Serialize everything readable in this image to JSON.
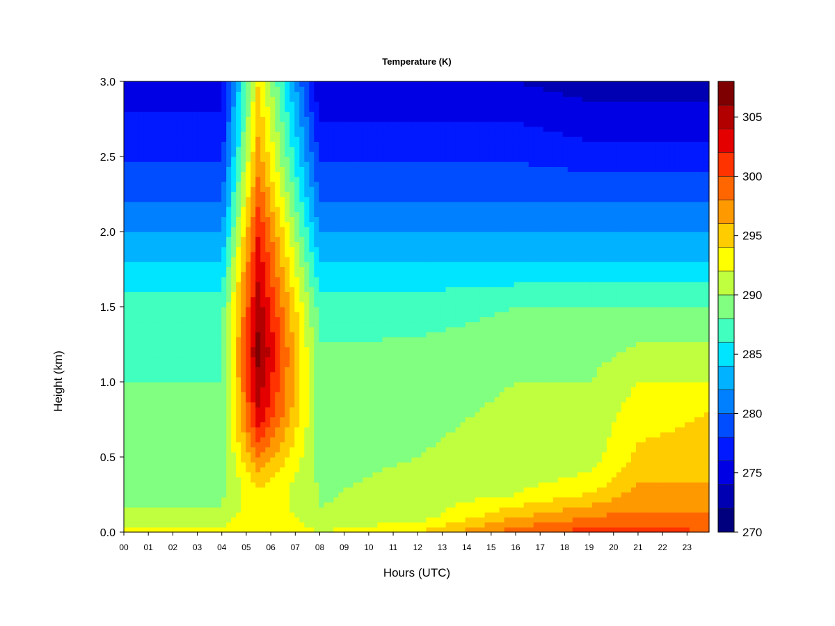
{
  "chart_data": {
    "type": "heatmap",
    "title": "Temperature (K)",
    "xlabel": "Hours (UTC)",
    "ylabel": "Height (km)",
    "x_ticks": [
      "00",
      "01",
      "02",
      "03",
      "04",
      "05",
      "06",
      "07",
      "08",
      "09",
      "10",
      "11",
      "12",
      "13",
      "14",
      "15",
      "16",
      "17",
      "18",
      "19",
      "20",
      "21",
      "22",
      "23"
    ],
    "x_range": [
      0,
      23.9
    ],
    "y_ticks": [
      "0.0",
      "0.5",
      "1.0",
      "1.5",
      "2.0",
      "2.5",
      "3.0"
    ],
    "y_range": [
      0,
      3.0
    ],
    "colorbar": {
      "levels": [
        270,
        272.5,
        275,
        277.5,
        280,
        282.5,
        285,
        287.5,
        290,
        292.5,
        295,
        297.5,
        300,
        302.5,
        305,
        307.5
      ],
      "tick_labels": [
        "270",
        "275",
        "280",
        "285",
        "290",
        "295",
        "300",
        "305"
      ],
      "colors": [
        "#00007F",
        "#0000B2",
        "#0000E5",
        "#0019FF",
        "#004CFF",
        "#0080FF",
        "#00B2FF",
        "#00E5FF",
        "#40FFBF",
        "#80FF80",
        "#BFFF40",
        "#FFFF00",
        "#FFCC00",
        "#FF9900",
        "#FF6600",
        "#FF3300",
        "#E50000",
        "#B20000",
        "#7F0000"
      ],
      "range": [
        270,
        308
      ]
    },
    "profiles": [
      {
        "hour": 0,
        "temps": [
          [
            0,
            293
          ],
          [
            0.15,
            290
          ],
          [
            0.5,
            289
          ],
          [
            1.0,
            288
          ],
          [
            1.5,
            287
          ],
          [
            1.8,
            284
          ],
          [
            2.2,
            280
          ],
          [
            2.6,
            277
          ],
          [
            3.0,
            275
          ]
        ]
      },
      {
        "hour": 4,
        "temps": [
          [
            0,
            292.5
          ],
          [
            0.15,
            290
          ],
          [
            0.5,
            289
          ],
          [
            1.0,
            288
          ],
          [
            1.5,
            287
          ],
          [
            1.8,
            284
          ],
          [
            2.2,
            280
          ],
          [
            2.6,
            277
          ],
          [
            3.0,
            275
          ]
        ]
      },
      {
        "hour": 5.5,
        "temps": [
          [
            0,
            294
          ],
          [
            0.3,
            294
          ],
          [
            0.5,
            298
          ],
          [
            0.8,
            304
          ],
          [
            1.2,
            307
          ],
          [
            1.7,
            304
          ],
          [
            2.0,
            302
          ],
          [
            2.5,
            297
          ],
          [
            3.0,
            294
          ]
        ]
      },
      {
        "hour": 8,
        "temps": [
          [
            0,
            292
          ],
          [
            0.15,
            290
          ],
          [
            0.5,
            289.5
          ],
          [
            1.0,
            289
          ],
          [
            1.5,
            287
          ],
          [
            1.8,
            284
          ],
          [
            2.2,
            280
          ],
          [
            2.6,
            277
          ],
          [
            3.0,
            274
          ]
        ]
      },
      {
        "hour": 12,
        "temps": [
          [
            0,
            294
          ],
          [
            0.1,
            291
          ],
          [
            0.5,
            290
          ],
          [
            1.0,
            289.5
          ],
          [
            1.5,
            287
          ],
          [
            1.8,
            284
          ],
          [
            2.2,
            280
          ],
          [
            2.6,
            277
          ],
          [
            3.0,
            274
          ]
        ]
      },
      {
        "hour": 16,
        "temps": [
          [
            0,
            299
          ],
          [
            0.1,
            296
          ],
          [
            0.25,
            292
          ],
          [
            0.5,
            290.5
          ],
          [
            1.0,
            290
          ],
          [
            1.5,
            288
          ],
          [
            1.8,
            284
          ],
          [
            2.2,
            280
          ],
          [
            2.6,
            277
          ],
          [
            3.0,
            274
          ]
        ]
      },
      {
        "hour": 19,
        "temps": [
          [
            0,
            301
          ],
          [
            0.1,
            298
          ],
          [
            0.3,
            293
          ],
          [
            0.5,
            291
          ],
          [
            1.0,
            290
          ],
          [
            1.5,
            288
          ],
          [
            1.8,
            284
          ],
          [
            2.2,
            280
          ],
          [
            2.6,
            276
          ],
          [
            3.0,
            273
          ]
        ]
      },
      {
        "hour": 21,
        "temps": [
          [
            0,
            301
          ],
          [
            0.15,
            298
          ],
          [
            0.4,
            295
          ],
          [
            0.8,
            293
          ],
          [
            1.0,
            292
          ],
          [
            1.5,
            288
          ],
          [
            1.8,
            284
          ],
          [
            2.2,
            280
          ],
          [
            2.6,
            276
          ],
          [
            3.0,
            273
          ]
        ]
      },
      {
        "hour": 23.9,
        "temps": [
          [
            0,
            300
          ],
          [
            0.2,
            297
          ],
          [
            0.5,
            295
          ],
          [
            0.8,
            294
          ],
          [
            1.0,
            292
          ],
          [
            1.5,
            288
          ],
          [
            1.8,
            284
          ],
          [
            2.2,
            280
          ],
          [
            2.6,
            276
          ],
          [
            3.0,
            273
          ]
        ]
      }
    ]
  }
}
